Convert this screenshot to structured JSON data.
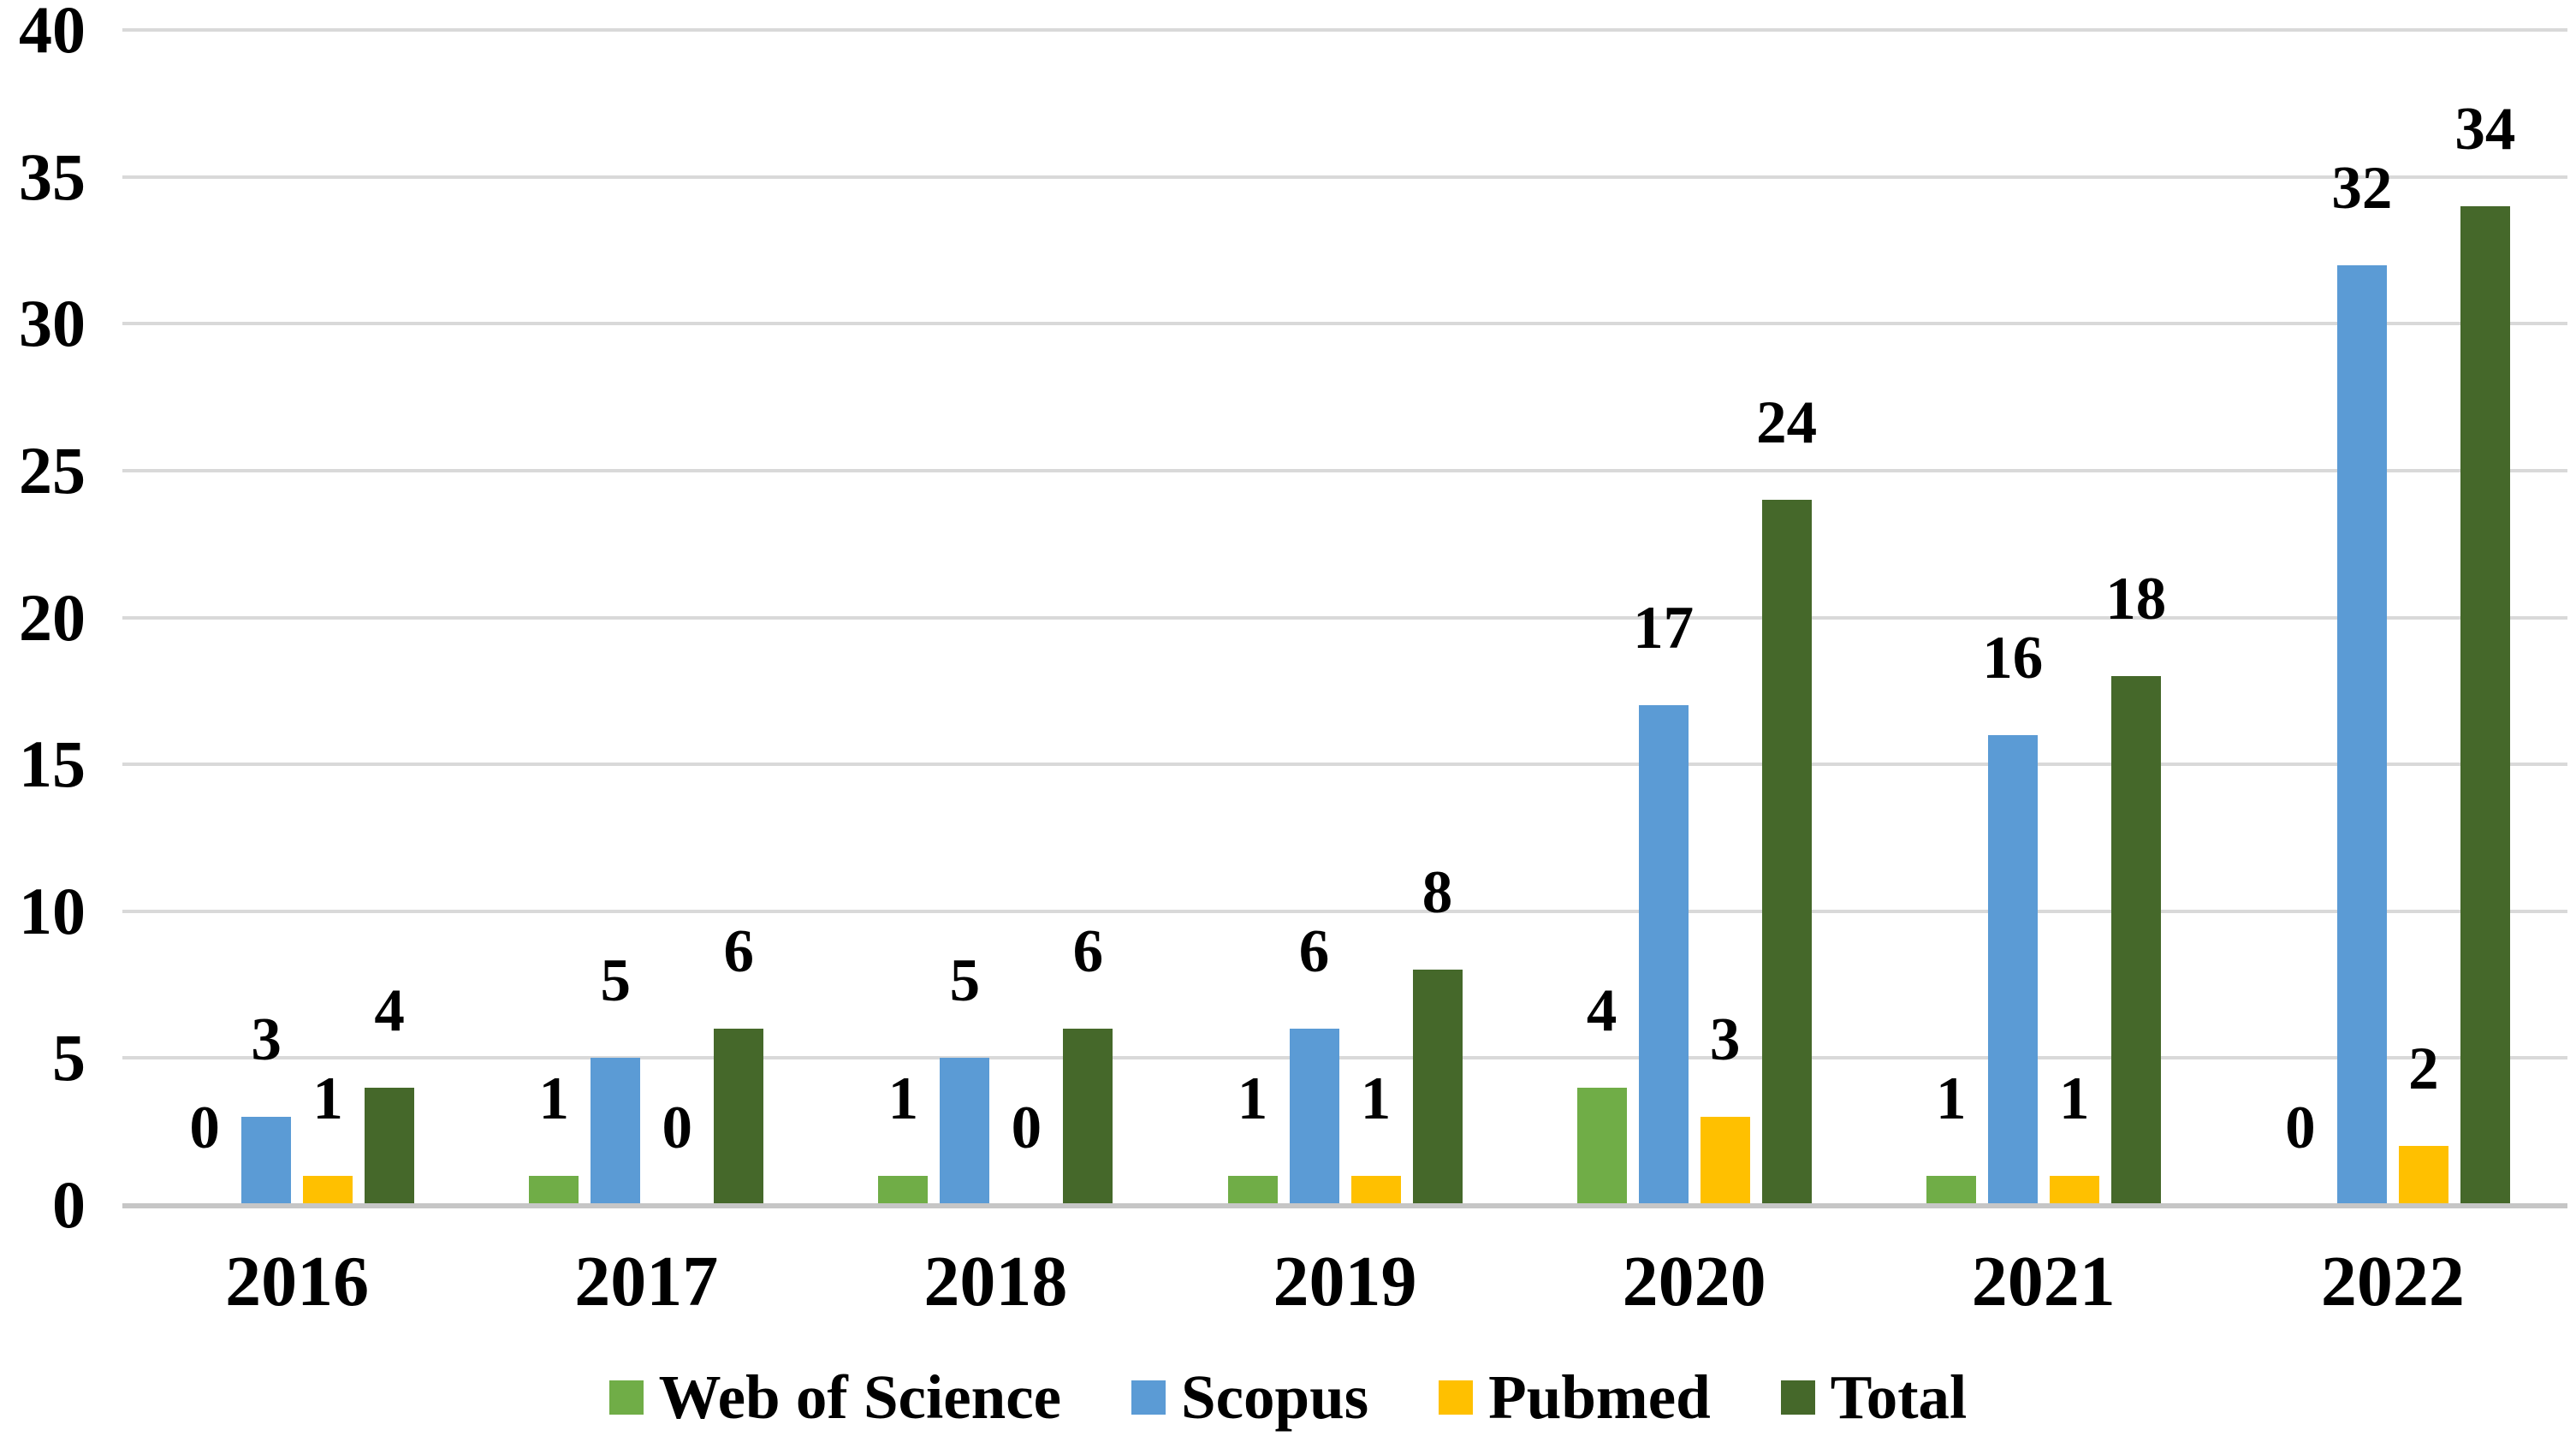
{
  "chart_data": {
    "type": "bar",
    "title": "",
    "xlabel": "",
    "ylabel": "",
    "categories": [
      "2016",
      "2017",
      "2018",
      "2019",
      "2020",
      "2021",
      "2022"
    ],
    "series": [
      {
        "name": "Web of Science",
        "color": "#70AD47",
        "values": [
          0,
          1,
          1,
          1,
          4,
          1,
          0
        ]
      },
      {
        "name": "Scopus",
        "color": "#5B9BD5",
        "values": [
          3,
          5,
          5,
          6,
          17,
          16,
          32
        ]
      },
      {
        "name": "Pubmed",
        "color": "#FFC000",
        "values": [
          1,
          0,
          0,
          1,
          3,
          1,
          2
        ]
      },
      {
        "name": "Total",
        "color": "#45682A",
        "values": [
          4,
          6,
          6,
          8,
          24,
          18,
          34
        ]
      }
    ],
    "ylim": [
      0,
      40
    ],
    "yticks": [
      0,
      5,
      10,
      15,
      20,
      25,
      30,
      35,
      40
    ],
    "grid": true,
    "gridline_color": "#D9D9D9",
    "axis_line_color": "#C6C6C6",
    "background_color": "#FFFFFF",
    "text_color": "#000000",
    "data_labels": true,
    "data_label_position": "outside-end",
    "legend_position": "bottom"
  }
}
